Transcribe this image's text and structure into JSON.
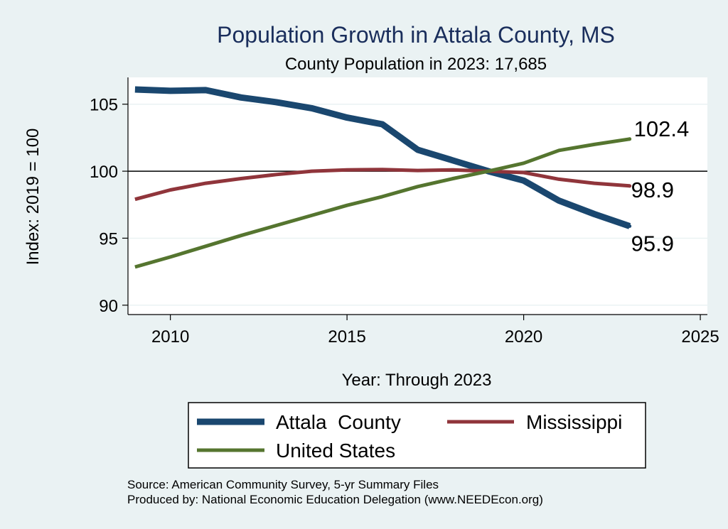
{
  "chart_data": {
    "type": "line",
    "title": "Population Growth in Attala County, MS",
    "subtitle": "County Population in 2023: 17,685",
    "xlabel": "Year: Through 2023",
    "ylabel": "Index: 2019 = 100",
    "xlim": [
      2008.8,
      2025.2
    ],
    "ylim": [
      89.3,
      107
    ],
    "xticks": [
      2010,
      2015,
      2020,
      2025
    ],
    "yticks": [
      90,
      95,
      100,
      105
    ],
    "reference_line": 100,
    "grid": true,
    "legend_position": "bottom",
    "x": [
      2009,
      2010,
      2011,
      2012,
      2013,
      2014,
      2015,
      2016,
      2017,
      2018,
      2019,
      2020,
      2021,
      2022,
      2023
    ],
    "series": [
      {
        "name": "Attala  County",
        "color": "#1a476f",
        "values": [
          106.1,
          106.0,
          106.05,
          105.5,
          105.15,
          104.7,
          104.0,
          103.5,
          101.6,
          100.8,
          100.0,
          99.3,
          97.8,
          96.8,
          95.9
        ],
        "end_label": "95.9"
      },
      {
        "name": "Mississippi",
        "color": "#90353b",
        "values": [
          97.9,
          98.6,
          99.1,
          99.45,
          99.75,
          100.0,
          100.1,
          100.12,
          100.05,
          100.1,
          100.0,
          99.9,
          99.4,
          99.1,
          98.9
        ],
        "end_label": "98.9"
      },
      {
        "name": "United States",
        "color": "#55752f",
        "values": [
          92.85,
          93.6,
          94.4,
          95.2,
          95.95,
          96.7,
          97.45,
          98.1,
          98.85,
          99.45,
          100.0,
          100.6,
          101.55,
          102.0,
          102.4
        ],
        "end_label": "102.4"
      }
    ]
  },
  "notes": {
    "source": "Source: American Community Survey, 5-yr Summary Files",
    "produced_by": "Produced by: National Economic Education Delegation (www.NEEDEcon.org)"
  }
}
